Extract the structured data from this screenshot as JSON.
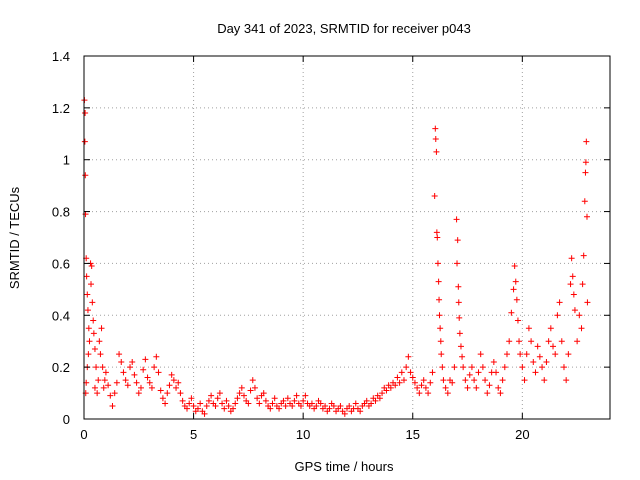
{
  "chart_data": {
    "type": "scatter",
    "title": "Day 341 of 2023, SRMTID for receiver p043",
    "xlabel": "GPS time / hours",
    "ylabel": "SRMTID / TECUs",
    "xlim": [
      0,
      24
    ],
    "ylim": [
      0,
      1.4
    ],
    "x_ticks": [
      0,
      5,
      10,
      15,
      20
    ],
    "x_tick_labels": [
      "0",
      "5",
      "10",
      "15",
      "20"
    ],
    "y_ticks": [
      0,
      0.2,
      0.4,
      0.6,
      0.8,
      1,
      1.2,
      1.4
    ],
    "y_tick_labels": [
      "0",
      "0.2",
      "0.4",
      "0.6",
      "0.8",
      "1",
      "1.2",
      "1.4"
    ],
    "grid": true,
    "marker": "+",
    "marker_color": "#ff0000",
    "series": [
      {
        "name": "SRMTID",
        "points": [
          [
            0.02,
            1.23
          ],
          [
            0.05,
            1.18
          ],
          [
            0.04,
            1.07
          ],
          [
            0.06,
            0.94
          ],
          [
            0.07,
            0.79
          ],
          [
            0.1,
            0.62
          ],
          [
            0.12,
            0.55
          ],
          [
            0.15,
            0.48
          ],
          [
            0.18,
            0.42
          ],
          [
            0.22,
            0.35
          ],
          [
            0.25,
            0.3
          ],
          [
            0.2,
            0.25
          ],
          [
            0.15,
            0.2
          ],
          [
            0.1,
            0.14
          ],
          [
            0.08,
            0.1
          ],
          [
            0.3,
            0.6
          ],
          [
            0.35,
            0.59
          ],
          [
            0.32,
            0.52
          ],
          [
            0.38,
            0.45
          ],
          [
            0.42,
            0.38
          ],
          [
            0.45,
            0.33
          ],
          [
            0.5,
            0.27
          ],
          [
            0.55,
            0.2
          ],
          [
            0.5,
            0.12
          ],
          [
            0.6,
            0.1
          ],
          [
            0.65,
            0.15
          ],
          [
            0.7,
            0.3
          ],
          [
            0.75,
            0.25
          ],
          [
            0.8,
            0.35
          ],
          [
            0.85,
            0.2
          ],
          [
            0.9,
            0.12
          ],
          [
            0.95,
            0.15
          ],
          [
            1.0,
            0.18
          ],
          [
            1.1,
            0.13
          ],
          [
            1.2,
            0.09
          ],
          [
            1.3,
            0.05
          ],
          [
            1.4,
            0.1
          ],
          [
            1.5,
            0.14
          ],
          [
            1.6,
            0.25
          ],
          [
            1.7,
            0.22
          ],
          [
            1.8,
            0.18
          ],
          [
            1.9,
            0.15
          ],
          [
            2.0,
            0.13
          ],
          [
            2.1,
            0.2
          ],
          [
            2.2,
            0.22
          ],
          [
            2.3,
            0.17
          ],
          [
            2.4,
            0.14
          ],
          [
            2.5,
            0.1
          ],
          [
            2.6,
            0.12
          ],
          [
            2.7,
            0.19
          ],
          [
            2.8,
            0.23
          ],
          [
            2.9,
            0.16
          ],
          [
            3.0,
            0.14
          ],
          [
            3.1,
            0.12
          ],
          [
            3.2,
            0.2
          ],
          [
            3.3,
            0.24
          ],
          [
            3.4,
            0.18
          ],
          [
            3.5,
            0.11
          ],
          [
            3.6,
            0.08
          ],
          [
            3.7,
            0.06
          ],
          [
            3.8,
            0.1
          ],
          [
            3.9,
            0.13
          ],
          [
            4.0,
            0.17
          ],
          [
            4.1,
            0.15
          ],
          [
            4.2,
            0.12
          ],
          [
            4.3,
            0.14
          ],
          [
            4.4,
            0.1
          ],
          [
            4.5,
            0.07
          ],
          [
            4.6,
            0.05
          ],
          [
            4.7,
            0.04
          ],
          [
            4.8,
            0.06
          ],
          [
            4.9,
            0.08
          ],
          [
            5.0,
            0.05
          ],
          [
            5.1,
            0.03
          ],
          [
            5.2,
            0.04
          ],
          [
            5.3,
            0.06
          ],
          [
            5.4,
            0.03
          ],
          [
            5.5,
            0.02
          ],
          [
            5.6,
            0.05
          ],
          [
            5.7,
            0.07
          ],
          [
            5.8,
            0.09
          ],
          [
            5.9,
            0.06
          ],
          [
            6.0,
            0.05
          ],
          [
            6.1,
            0.08
          ],
          [
            6.2,
            0.1
          ],
          [
            6.3,
            0.06
          ],
          [
            6.4,
            0.04
          ],
          [
            6.5,
            0.07
          ],
          [
            6.6,
            0.05
          ],
          [
            6.7,
            0.03
          ],
          [
            6.8,
            0.04
          ],
          [
            6.9,
            0.06
          ],
          [
            7.0,
            0.08
          ],
          [
            7.1,
            0.1
          ],
          [
            7.2,
            0.12
          ],
          [
            7.3,
            0.09
          ],
          [
            7.4,
            0.07
          ],
          [
            7.5,
            0.06
          ],
          [
            7.6,
            0.11
          ],
          [
            7.7,
            0.15
          ],
          [
            7.8,
            0.12
          ],
          [
            7.9,
            0.08
          ],
          [
            8.0,
            0.06
          ],
          [
            8.1,
            0.09
          ],
          [
            8.2,
            0.1
          ],
          [
            8.3,
            0.07
          ],
          [
            8.4,
            0.05
          ],
          [
            8.5,
            0.04
          ],
          [
            8.6,
            0.06
          ],
          [
            8.7,
            0.08
          ],
          [
            8.8,
            0.05
          ],
          [
            8.9,
            0.04
          ],
          [
            9.0,
            0.06
          ],
          [
            9.1,
            0.07
          ],
          [
            9.2,
            0.05
          ],
          [
            9.3,
            0.08
          ],
          [
            9.4,
            0.06
          ],
          [
            9.5,
            0.05
          ],
          [
            9.6,
            0.07
          ],
          [
            9.7,
            0.09
          ],
          [
            9.8,
            0.06
          ],
          [
            9.9,
            0.05
          ],
          [
            10.0,
            0.07
          ],
          [
            10.1,
            0.09
          ],
          [
            10.2,
            0.06
          ],
          [
            10.3,
            0.05
          ],
          [
            10.4,
            0.06
          ],
          [
            10.5,
            0.04
          ],
          [
            10.6,
            0.05
          ],
          [
            10.7,
            0.07
          ],
          [
            10.8,
            0.06
          ],
          [
            10.9,
            0.04
          ],
          [
            11.0,
            0.05
          ],
          [
            11.1,
            0.03
          ],
          [
            11.2,
            0.04
          ],
          [
            11.3,
            0.06
          ],
          [
            11.4,
            0.05
          ],
          [
            11.5,
            0.03
          ],
          [
            11.6,
            0.04
          ],
          [
            11.7,
            0.05
          ],
          [
            11.8,
            0.03
          ],
          [
            11.9,
            0.02
          ],
          [
            12.0,
            0.04
          ],
          [
            12.1,
            0.05
          ],
          [
            12.2,
            0.03
          ],
          [
            12.3,
            0.04
          ],
          [
            12.4,
            0.06
          ],
          [
            12.5,
            0.04
          ],
          [
            12.6,
            0.03
          ],
          [
            12.7,
            0.05
          ],
          [
            12.8,
            0.06
          ],
          [
            12.9,
            0.07
          ],
          [
            13.0,
            0.05
          ],
          [
            13.1,
            0.06
          ],
          [
            13.2,
            0.08
          ],
          [
            13.3,
            0.07
          ],
          [
            13.4,
            0.09
          ],
          [
            13.5,
            0.08
          ],
          [
            13.6,
            0.1
          ],
          [
            13.7,
            0.12
          ],
          [
            13.8,
            0.11
          ],
          [
            13.9,
            0.13
          ],
          [
            14.0,
            0.12
          ],
          [
            14.1,
            0.14
          ],
          [
            14.2,
            0.13
          ],
          [
            14.3,
            0.16
          ],
          [
            14.4,
            0.14
          ],
          [
            14.5,
            0.18
          ],
          [
            14.6,
            0.15
          ],
          [
            14.7,
            0.2
          ],
          [
            14.8,
            0.24
          ],
          [
            14.9,
            0.18
          ],
          [
            15.0,
            0.16
          ],
          [
            15.1,
            0.14
          ],
          [
            15.2,
            0.12
          ],
          [
            15.3,
            0.1
          ],
          [
            15.4,
            0.13
          ],
          [
            15.5,
            0.15
          ],
          [
            15.6,
            0.12
          ],
          [
            15.7,
            0.1
          ],
          [
            15.8,
            0.14
          ],
          [
            15.9,
            0.18
          ],
          [
            16.0,
            0.86
          ],
          [
            16.03,
            1.12
          ],
          [
            16.05,
            1.08
          ],
          [
            16.08,
            1.03
          ],
          [
            16.1,
            0.72
          ],
          [
            16.12,
            0.7
          ],
          [
            16.15,
            0.6
          ],
          [
            16.18,
            0.53
          ],
          [
            16.2,
            0.46
          ],
          [
            16.22,
            0.4
          ],
          [
            16.25,
            0.35
          ],
          [
            16.28,
            0.3
          ],
          [
            16.3,
            0.25
          ],
          [
            16.35,
            0.2
          ],
          [
            16.4,
            0.15
          ],
          [
            16.5,
            0.12
          ],
          [
            16.6,
            0.1
          ],
          [
            16.7,
            0.15
          ],
          [
            16.8,
            0.14
          ],
          [
            16.9,
            0.2
          ],
          [
            17.0,
            0.77
          ],
          [
            17.05,
            0.69
          ],
          [
            17.02,
            0.6
          ],
          [
            17.08,
            0.51
          ],
          [
            17.1,
            0.45
          ],
          [
            17.12,
            0.39
          ],
          [
            17.15,
            0.33
          ],
          [
            17.2,
            0.28
          ],
          [
            17.25,
            0.24
          ],
          [
            17.3,
            0.2
          ],
          [
            17.4,
            0.15
          ],
          [
            17.5,
            0.12
          ],
          [
            17.6,
            0.17
          ],
          [
            17.7,
            0.2
          ],
          [
            17.8,
            0.15
          ],
          [
            17.9,
            0.12
          ],
          [
            18.0,
            0.18
          ],
          [
            18.1,
            0.25
          ],
          [
            18.2,
            0.2
          ],
          [
            18.3,
            0.15
          ],
          [
            18.4,
            0.1
          ],
          [
            18.5,
            0.13
          ],
          [
            18.6,
            0.18
          ],
          [
            18.7,
            0.22
          ],
          [
            18.8,
            0.18
          ],
          [
            18.9,
            0.12
          ],
          [
            19.0,
            0.1
          ],
          [
            19.1,
            0.15
          ],
          [
            19.2,
            0.2
          ],
          [
            19.3,
            0.25
          ],
          [
            19.4,
            0.3
          ],
          [
            19.5,
            0.41
          ],
          [
            19.6,
            0.5
          ],
          [
            19.65,
            0.59
          ],
          [
            19.7,
            0.53
          ],
          [
            19.75,
            0.46
          ],
          [
            19.8,
            0.38
          ],
          [
            19.85,
            0.3
          ],
          [
            19.9,
            0.25
          ],
          [
            20.0,
            0.2
          ],
          [
            20.1,
            0.15
          ],
          [
            20.2,
            0.25
          ],
          [
            20.3,
            0.35
          ],
          [
            20.4,
            0.3
          ],
          [
            20.5,
            0.22
          ],
          [
            20.6,
            0.18
          ],
          [
            20.7,
            0.28
          ],
          [
            20.8,
            0.24
          ],
          [
            20.9,
            0.2
          ],
          [
            21.0,
            0.15
          ],
          [
            21.1,
            0.22
          ],
          [
            21.2,
            0.3
          ],
          [
            21.3,
            0.35
          ],
          [
            21.4,
            0.28
          ],
          [
            21.5,
            0.25
          ],
          [
            21.6,
            0.4
          ],
          [
            21.7,
            0.45
          ],
          [
            21.8,
            0.3
          ],
          [
            21.9,
            0.2
          ],
          [
            22.0,
            0.15
          ],
          [
            22.1,
            0.25
          ],
          [
            22.2,
            0.52
          ],
          [
            22.25,
            0.62
          ],
          [
            22.3,
            0.55
          ],
          [
            22.35,
            0.48
          ],
          [
            22.4,
            0.42
          ],
          [
            22.5,
            0.3
          ],
          [
            22.6,
            0.4
          ],
          [
            22.7,
            0.35
          ],
          [
            22.75,
            0.52
          ],
          [
            22.8,
            0.63
          ],
          [
            22.85,
            0.84
          ],
          [
            22.88,
            0.95
          ],
          [
            22.9,
            0.99
          ],
          [
            22.92,
            1.07
          ],
          [
            22.95,
            0.78
          ],
          [
            22.97,
            0.45
          ]
        ]
      }
    ]
  }
}
